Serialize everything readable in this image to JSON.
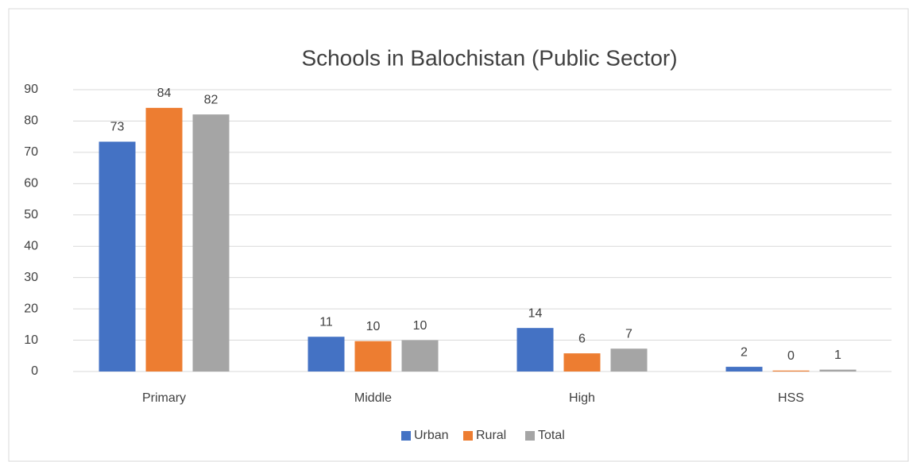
{
  "chart_data": {
    "type": "bar",
    "title": "Schools in Balochistan (Public Sector)",
    "categories": [
      "Primary",
      "Middle",
      "High",
      "HSS"
    ],
    "series": [
      {
        "name": "Urban",
        "color": "#4472c4",
        "values": [
          73.4,
          11.1,
          13.9,
          1.5
        ],
        "value_labels": [
          "73",
          "11",
          "14",
          "2"
        ]
      },
      {
        "name": "Rural",
        "color": "#ed7d31",
        "values": [
          84.2,
          9.7,
          5.8,
          0.3
        ],
        "value_labels": [
          "84",
          "10",
          "6",
          "0"
        ]
      },
      {
        "name": "Total",
        "color": "#a5a5a5",
        "values": [
          82.1,
          10.0,
          7.3,
          0.6
        ],
        "value_labels": [
          "82",
          "10",
          "7",
          "1"
        ]
      }
    ],
    "ylim": [
      0,
      90
    ],
    "yticks": [
      0,
      10,
      20,
      30,
      40,
      50,
      60,
      70,
      80,
      90
    ],
    "grid": true,
    "legend": "bottom"
  }
}
